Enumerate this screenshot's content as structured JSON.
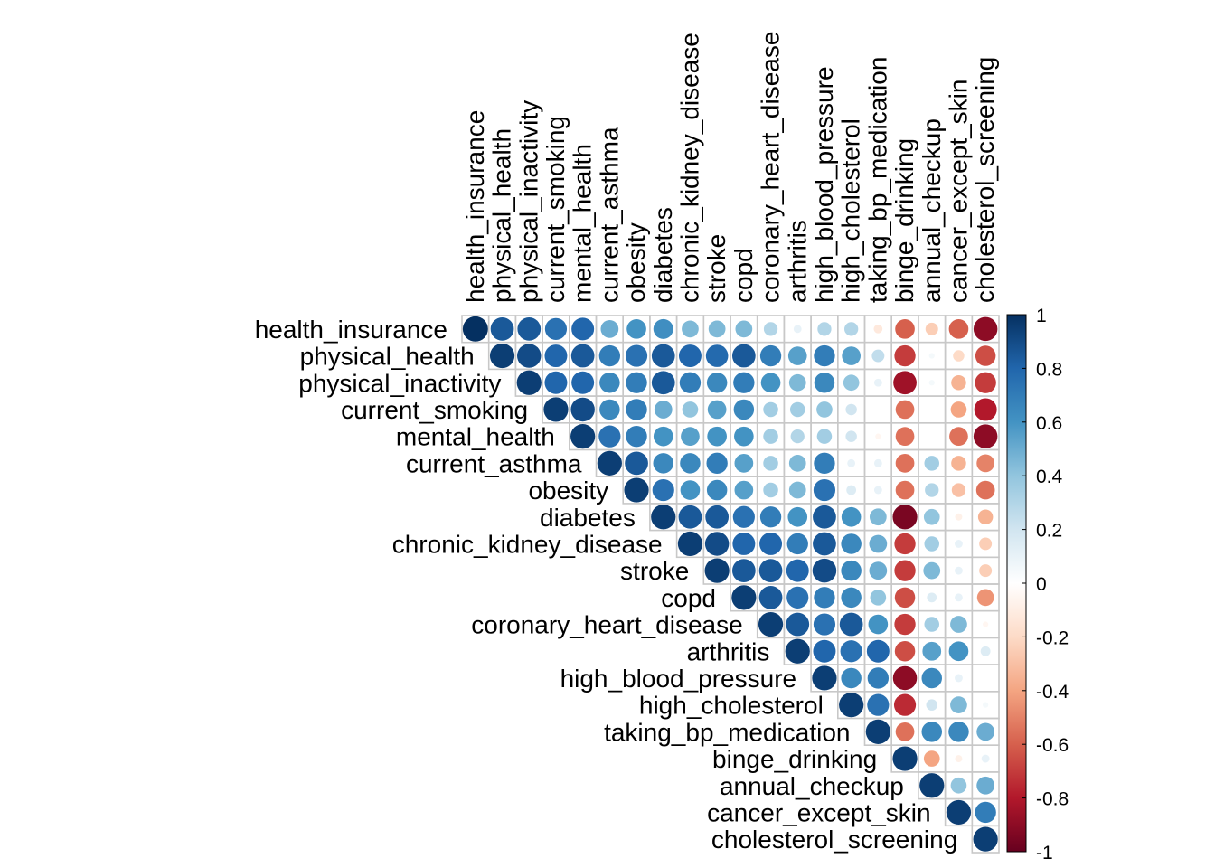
{
  "chart_data": {
    "type": "heatmap",
    "title": "",
    "variables": [
      "health_insurance",
      "physical_health",
      "physical_inactivity",
      "current_smoking",
      "mental_health",
      "current_asthma",
      "obesity",
      "diabetes",
      "chronic_kidney_disease",
      "stroke",
      "copd",
      "coronary_heart_disease",
      "arthritis",
      "high_blood_pressure",
      "high_cholesterol",
      "taking_bp_medication",
      "binge_drinking",
      "annual_checkup",
      "cancer_except_skin",
      "cholesterol_screening"
    ],
    "matrix_layout": "upper-triangular",
    "rows": [
      [
        1.0,
        0.85,
        0.85,
        0.75,
        0.8,
        0.5,
        0.6,
        0.62,
        0.45,
        0.45,
        0.45,
        0.3,
        0.1,
        0.3,
        0.3,
        -0.12,
        -0.6,
        -0.25,
        -0.6,
        -0.9
      ],
      [
        0.95,
        0.9,
        0.8,
        0.85,
        0.7,
        0.75,
        0.85,
        0.8,
        0.78,
        0.85,
        0.7,
        0.55,
        0.7,
        0.55,
        0.25,
        -0.7,
        0.05,
        -0.2,
        -0.65
      ],
      [
        0.95,
        0.8,
        0.8,
        0.65,
        0.7,
        0.85,
        0.7,
        0.65,
        0.7,
        0.6,
        0.45,
        0.65,
        0.4,
        0.1,
        -0.85,
        0.05,
        -0.35,
        -0.7
      ],
      [
        0.95,
        0.9,
        0.65,
        0.7,
        0.5,
        0.4,
        0.55,
        0.65,
        0.35,
        0.35,
        0.4,
        0.2,
        0.0,
        -0.55,
        0.0,
        -0.4,
        -0.8
      ],
      [
        0.95,
        0.75,
        0.7,
        0.6,
        0.55,
        0.6,
        0.6,
        0.35,
        0.3,
        0.35,
        0.2,
        -0.05,
        -0.55,
        0.0,
        -0.55,
        -0.9
      ],
      [
        0.95,
        0.85,
        0.65,
        0.65,
        0.7,
        0.55,
        0.35,
        0.45,
        0.7,
        0.1,
        0.1,
        -0.55,
        0.35,
        -0.35,
        -0.5
      ],
      [
        0.95,
        0.75,
        0.6,
        0.65,
        0.55,
        0.35,
        0.45,
        0.75,
        0.15,
        0.1,
        -0.55,
        0.3,
        -0.3,
        -0.55
      ],
      [
        0.95,
        0.85,
        0.85,
        0.75,
        0.7,
        0.6,
        0.85,
        0.6,
        0.45,
        -0.95,
        0.4,
        -0.08,
        -0.35
      ],
      [
        0.95,
        0.9,
        0.8,
        0.8,
        0.7,
        0.85,
        0.65,
        0.5,
        -0.7,
        0.35,
        0.1,
        -0.25
      ],
      [
        0.95,
        0.85,
        0.85,
        0.8,
        0.9,
        0.65,
        0.5,
        -0.7,
        0.45,
        0.1,
        -0.25
      ],
      [
        0.95,
        0.85,
        0.75,
        0.7,
        0.65,
        0.4,
        -0.65,
        0.15,
        0.1,
        -0.45
      ],
      [
        0.95,
        0.85,
        0.75,
        0.85,
        0.6,
        -0.7,
        0.35,
        0.45,
        -0.05
      ],
      [
        0.95,
        0.8,
        0.75,
        0.8,
        -0.65,
        0.55,
        0.6,
        0.15
      ],
      [
        0.95,
        0.65,
        0.7,
        -0.9,
        0.65,
        0.1,
        0.0
      ],
      [
        0.95,
        0.75,
        -0.75,
        0.2,
        0.45,
        0.05
      ],
      [
        0.95,
        -0.55,
        0.65,
        0.65,
        0.5
      ],
      [
        0.95,
        -0.4,
        -0.08,
        0.1
      ],
      [
        0.95,
        0.4,
        0.5
      ],
      [
        0.95,
        0.7
      ],
      [
        0.95
      ]
    ],
    "colorbar": {
      "ticks": [
        "1",
        "0.8",
        "0.6",
        "0.4",
        "0.2",
        "0",
        "-0.2",
        "-0.4",
        "-0.6",
        "-0.8",
        "-1"
      ],
      "range": [
        -1,
        1
      ]
    },
    "colormap": [
      "#67001F",
      "#B2182B",
      "#D6604D",
      "#F4A582",
      "#FDDBC7",
      "#FFFFFF",
      "#D1E5F0",
      "#92C5DE",
      "#4393C3",
      "#2166AC",
      "#053061"
    ]
  }
}
